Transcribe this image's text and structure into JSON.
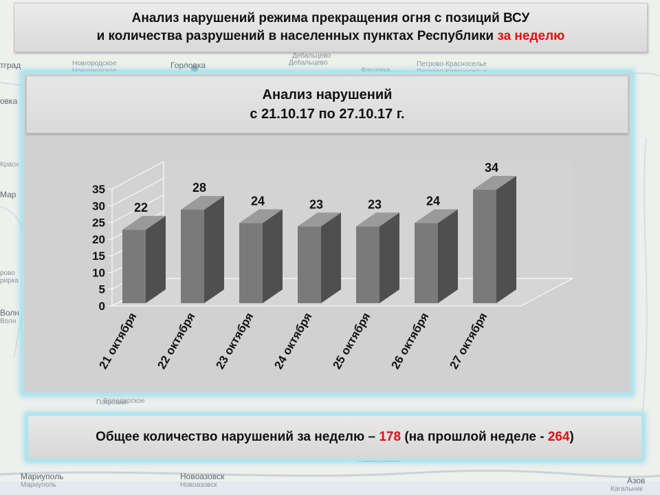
{
  "header": {
    "line1": "Анализ нарушений режима прекращения огня с позиций ВСУ",
    "line2": "и количества разрушений в населенных пунктах Республики ",
    "line2_highlight": "за неделю"
  },
  "panel": {
    "title": "Анализ нарушений",
    "subtitle": "с 21.10.17 по 27.10.17 г."
  },
  "chart_data": {
    "type": "bar",
    "title": "",
    "xlabel": "",
    "ylabel": "",
    "categories": [
      "21 октября",
      "22 октября",
      "23 октября",
      "24 октября",
      "25 октября",
      "26 октября",
      "27 октября"
    ],
    "values": [
      22,
      28,
      24,
      23,
      23,
      24,
      34
    ],
    "ylim": [
      0,
      35
    ],
    "yticks": [
      "0",
      "5",
      "10",
      "15",
      "20",
      "25",
      "30",
      "35"
    ],
    "grid": false,
    "legend": "none",
    "style": "3d",
    "colors": {
      "front": "#7a7a7a",
      "side": "#4f4f4f",
      "top": "#9a9a9a",
      "value_label": "#111111"
    }
  },
  "summary": {
    "part1": "Общее количество нарушений за неделю – ",
    "total": "178",
    "part2": " (на прошлой неделе - ",
    "previous": "264",
    "part3": ")"
  },
  "map_labels": {
    "l1": "Новгородское",
    "l2": "Новгородское",
    "l3": "Горловка",
    "l4": "Дебальцево",
    "l5": "Дебальцево",
    "l6": "Фащевка",
    "l7": "Петрово-Красноселье",
    "l8": "Петрово-Красноселье",
    "l9": "тград",
    "l10": "овка",
    "l11": "Красн",
    "l12": "Мар",
    "l13": "рово",
    "l14": "рирка",
    "l15": "Волн",
    "l16": "Волн",
    "l17": "Покровка",
    "l18": "Володарское",
    "l19": "Мариуполь",
    "l20": "Мариуполь",
    "l21": "Новоазовск",
    "l22": "Новоазовск",
    "l23": "Азов",
    "l24": "Кагальник",
    "l25": "Новоселовка"
  }
}
